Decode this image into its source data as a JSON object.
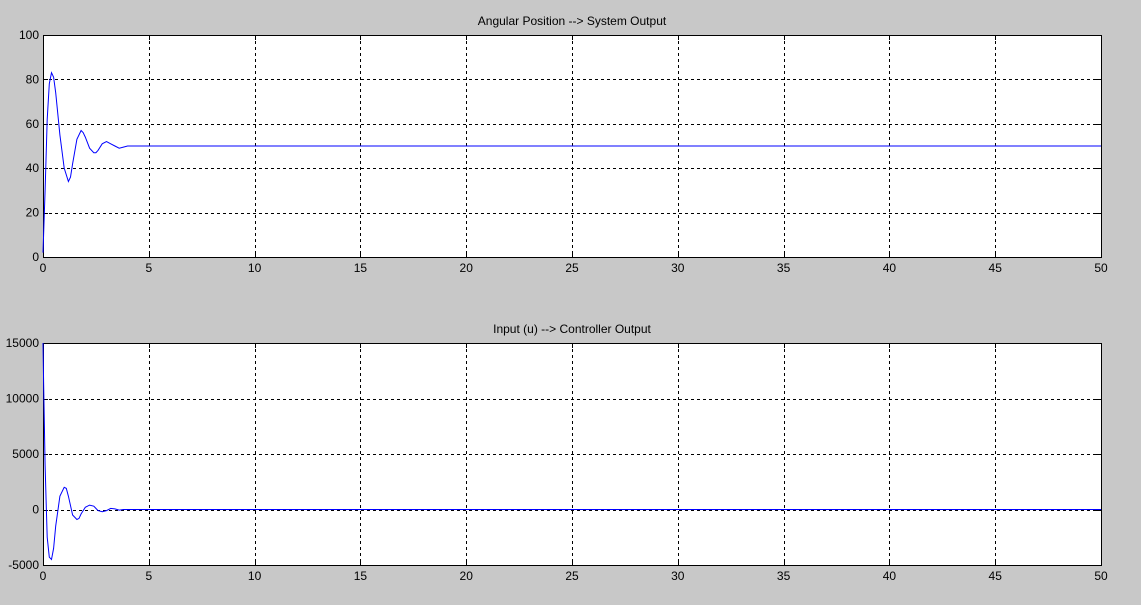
{
  "chart_data": [
    {
      "type": "line",
      "title": "Angular Position --> System Output",
      "xlabel": "",
      "ylabel": "",
      "xlim": [
        0,
        50
      ],
      "ylim": [
        0,
        100
      ],
      "xticks": [
        0,
        5,
        10,
        15,
        20,
        25,
        30,
        35,
        40,
        45,
        50
      ],
      "yticks": [
        0,
        20,
        40,
        60,
        80,
        100
      ],
      "grid": true,
      "series_color": "#0000ff",
      "series": [
        {
          "x": [
            0,
            0.1,
            0.2,
            0.3,
            0.4,
            0.5,
            0.6,
            0.8,
            1.0,
            1.2,
            1.3,
            1.4,
            1.6,
            1.8,
            1.9,
            2.0,
            2.2,
            2.4,
            2.5,
            2.6,
            2.8,
            3.0,
            3.2,
            3.4,
            3.6,
            3.8,
            4.0,
            4.5,
            5.0,
            7.5,
            10,
            15,
            20,
            25,
            30,
            35,
            40,
            45,
            50
          ],
          "y": [
            2,
            30,
            62,
            78,
            83,
            81,
            74,
            55,
            40,
            34,
            36,
            42,
            53,
            57,
            56,
            54,
            49,
            47,
            47,
            48,
            51,
            52,
            51,
            50,
            49,
            49.5,
            50,
            50,
            50,
            50,
            50,
            50,
            50,
            50,
            50,
            50,
            50,
            50,
            50
          ]
        }
      ]
    },
    {
      "type": "line",
      "title": "Input (u) --> Controller Output",
      "xlabel": "",
      "ylabel": "",
      "xlim": [
        0,
        50
      ],
      "ylim": [
        -5000,
        15000
      ],
      "xticks": [
        0,
        5,
        10,
        15,
        20,
        25,
        30,
        35,
        40,
        45,
        50
      ],
      "yticks": [
        -5000,
        0,
        5000,
        10000,
        15000
      ],
      "grid": true,
      "series_color": "#0000ff",
      "series": [
        {
          "x": [
            0,
            0.03,
            0.06,
            0.1,
            0.15,
            0.2,
            0.3,
            0.4,
            0.5,
            0.6,
            0.8,
            1.0,
            1.1,
            1.2,
            1.4,
            1.6,
            1.7,
            1.8,
            2.0,
            2.2,
            2.4,
            2.5,
            2.6,
            2.8,
            3.0,
            3.2,
            3.4,
            3.6,
            3.8,
            4.0,
            5,
            10,
            20,
            30,
            40,
            50
          ],
          "y": [
            15000,
            11500,
            8000,
            4000,
            500,
            -2500,
            -4300,
            -4500,
            -3500,
            -1500,
            1200,
            2000,
            1900,
            1200,
            -500,
            -900,
            -800,
            -400,
            200,
            400,
            300,
            100,
            -100,
            -200,
            -100,
            100,
            50,
            -50,
            0,
            0,
            0,
            0,
            0,
            0,
            0,
            0
          ]
        }
      ]
    }
  ]
}
